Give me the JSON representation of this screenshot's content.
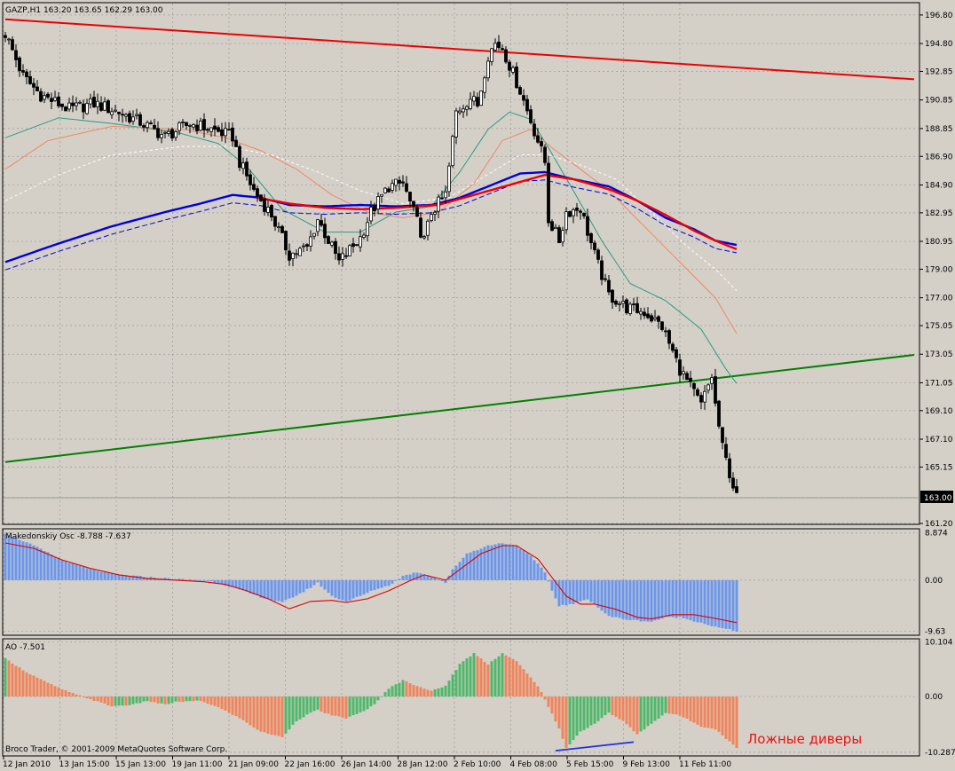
{
  "symbol_header": "GAZP,H1  163.20 163.65 162.29 163.00",
  "osc_header": "Makedonskiy Osc -8.788 -7.637",
  "ao_header": "AO -7.501",
  "copyright": "Broco Trader, © 2001-2009 MetaQuotes Software Corp.",
  "annotation": "Ложные диверы",
  "colors": {
    "background": "#d4d0c8",
    "grid": "#9a9a9a",
    "candle": "#000000",
    "ma_fast": "#2a9a80",
    "ma_mid": "#f08860",
    "ma_slow": "#ffffff",
    "ma_blue": "#0000dd",
    "ma_red": "#ee0000",
    "trend_red": "#ee0000",
    "trend_green": "#008000",
    "osc_hist": "#6a96ee",
    "osc_signal": "#dd0000",
    "ao_up": "#4fb86a",
    "ao_down": "#f0845a",
    "divergence": "#2030dd",
    "annotation": "#ee1111"
  },
  "chart_data": [
    {
      "type": "candlestick",
      "title": "GAZP,H1",
      "ylim": [
        161.2,
        197.6
      ],
      "y_ticks": [
        "196.80",
        "194.80",
        "192.85",
        "190.85",
        "188.85",
        "186.90",
        "184.90",
        "182.95",
        "180.95",
        "179.00",
        "177.00",
        "175.05",
        "173.05",
        "171.05",
        "169.10",
        "167.10",
        "165.15",
        "163.00",
        "161.20"
      ],
      "last_price": "163.00",
      "x_ticks": [
        "12 Jan 2010",
        "13 Jan 15:00",
        "15 Jan 13:00",
        "19 Jan 11:00",
        "21 Jan 09:00",
        "22 Jan 16:00",
        "26 Jan 14:00",
        "28 Jan 12:00",
        "2 Feb 10:00",
        "4 Feb 08:00",
        "5 Feb 15:00",
        "9 Feb 13:00",
        "11 Feb 11:00"
      ],
      "bars": 206,
      "close_path": [
        [
          0,
          195.5
        ],
        [
          5,
          192.5
        ],
        [
          10,
          191.2
        ],
        [
          18,
          190.2
        ],
        [
          25,
          190.6
        ],
        [
          32,
          190.0
        ],
        [
          38,
          189.3
        ],
        [
          45,
          188.3
        ],
        [
          52,
          189.2
        ],
        [
          58,
          188.8
        ],
        [
          64,
          188.3
        ],
        [
          66,
          186.5
        ],
        [
          70,
          184.5
        ],
        [
          75,
          182.8
        ],
        [
          80,
          180.0
        ],
        [
          85,
          180.5
        ],
        [
          88,
          182.5
        ],
        [
          94,
          179.5
        ],
        [
          100,
          181.2
        ],
        [
          103,
          183.0
        ],
        [
          108,
          184.8
        ],
        [
          112,
          185.0
        ],
        [
          115,
          183.0
        ],
        [
          118,
          181.0
        ],
        [
          120,
          183.0
        ],
        [
          124,
          184.2
        ],
        [
          127,
          190.0
        ],
        [
          131,
          191.0
        ],
        [
          133,
          190.5
        ],
        [
          136,
          194.0
        ],
        [
          138,
          194.8
        ],
        [
          140,
          194.5
        ],
        [
          145,
          191.5
        ],
        [
          150,
          188.0
        ],
        [
          152,
          186.5
        ],
        [
          153,
          182.5
        ],
        [
          156,
          181.0
        ],
        [
          158,
          183.0
        ],
        [
          162,
          183.3
        ],
        [
          166,
          180.0
        ],
        [
          170,
          177.2
        ],
        [
          175,
          176.3
        ],
        [
          180,
          176.0
        ],
        [
          185,
          175.0
        ],
        [
          190,
          172.0
        ],
        [
          196,
          169.5
        ],
        [
          199,
          171.5
        ],
        [
          200,
          169.5
        ],
        [
          202,
          166.5
        ],
        [
          206,
          163.0
        ]
      ],
      "series": [
        {
          "name": "ma_fast",
          "values": [
            [
              0,
              188.2
            ],
            [
              15,
              189.6
            ],
            [
              30,
              189.2
            ],
            [
              48,
              188.6
            ],
            [
              60,
              187.8
            ],
            [
              68,
              186.2
            ],
            [
              78,
              183.2
            ],
            [
              90,
              181.6
            ],
            [
              100,
              181.6
            ],
            [
              110,
              183.0
            ],
            [
              120,
              183.4
            ],
            [
              128,
              185.8
            ],
            [
              136,
              188.8
            ],
            [
              142,
              190.0
            ],
            [
              148,
              189.5
            ],
            [
              153,
              187.5
            ],
            [
              160,
              184.5
            ],
            [
              168,
              181.0
            ],
            [
              176,
              178.0
            ],
            [
              186,
              176.8
            ],
            [
              196,
              174.8
            ],
            [
              203,
              172.0
            ],
            [
              206,
              171.0
            ]
          ]
        },
        {
          "name": "ma_mid",
          "values": [
            [
              0,
              186.0
            ],
            [
              12,
              188.0
            ],
            [
              30,
              189.0
            ],
            [
              50,
              188.8
            ],
            [
              62,
              188.2
            ],
            [
              72,
              187.3
            ],
            [
              82,
              186.0
            ],
            [
              92,
              184.2
            ],
            [
              102,
              183.0
            ],
            [
              112,
              182.6
            ],
            [
              122,
              183.0
            ],
            [
              132,
              185.0
            ],
            [
              140,
              188.0
            ],
            [
              148,
              188.8
            ],
            [
              154,
              187.5
            ],
            [
              162,
              186.0
            ],
            [
              170,
              184.5
            ],
            [
              180,
              182.0
            ],
            [
              190,
              179.5
            ],
            [
              200,
              177.0
            ],
            [
              206,
              174.5
            ]
          ]
        },
        {
          "name": "ma_slow",
          "values": [
            [
              0,
              183.8
            ],
            [
              15,
              185.6
            ],
            [
              30,
              187.0
            ],
            [
              50,
              187.6
            ],
            [
              62,
              187.6
            ],
            [
              75,
              187.0
            ],
            [
              88,
              185.8
            ],
            [
              100,
              184.5
            ],
            [
              112,
              183.6
            ],
            [
              125,
              184.0
            ],
            [
              135,
              185.5
            ],
            [
              145,
              187.0
            ],
            [
              153,
              187.0
            ],
            [
              162,
              186.3
            ],
            [
              172,
              185.3
            ],
            [
              182,
              183.0
            ],
            [
              192,
              180.6
            ],
            [
              200,
              179.0
            ],
            [
              206,
              177.5
            ]
          ]
        },
        {
          "name": "ma_blue",
          "values": [
            [
              0,
              179.5
            ],
            [
              15,
              180.8
            ],
            [
              30,
              182.0
            ],
            [
              45,
              183.0
            ],
            [
              55,
              183.6
            ],
            [
              64,
              184.2
            ],
            [
              72,
              184.0
            ],
            [
              80,
              183.5
            ],
            [
              90,
              183.4
            ],
            [
              100,
              183.5
            ],
            [
              110,
              183.4
            ],
            [
              120,
              183.5
            ],
            [
              128,
              184.0
            ],
            [
              136,
              184.8
            ],
            [
              145,
              185.7
            ],
            [
              152,
              185.8
            ],
            [
              160,
              185.3
            ],
            [
              170,
              184.8
            ],
            [
              178,
              183.8
            ],
            [
              186,
              182.6
            ],
            [
              194,
              181.8
            ],
            [
              200,
              181.0
            ],
            [
              206,
              180.7
            ]
          ]
        },
        {
          "name": "ma_red",
          "values": [
            [
              71,
              184.0
            ],
            [
              80,
              183.6
            ],
            [
              90,
              183.3
            ],
            [
              100,
              183.2
            ],
            [
              110,
              183.3
            ],
            [
              122,
              183.5
            ],
            [
              152,
              185.6
            ],
            [
              160,
              185.3
            ],
            [
              170,
              184.6
            ],
            [
              178,
              183.8
            ],
            [
              186,
              182.8
            ],
            [
              194,
              181.7
            ],
            [
              200,
              181.0
            ],
            [
              206,
              180.4
            ]
          ]
        }
      ],
      "trend_lines": [
        {
          "name": "resistance",
          "from": [
            0,
            196.5
          ],
          "to": [
            256,
            192.3
          ]
        },
        {
          "name": "support",
          "from": [
            0,
            165.5
          ],
          "to": [
            256,
            173.0
          ]
        }
      ]
    },
    {
      "type": "bar",
      "title": "Makedonskiy Osc",
      "ylim": [
        -10.2,
        9.5
      ],
      "y_ticks": [
        "8.874",
        "0.00",
        "-9.63"
      ],
      "hist_path": [
        [
          0,
          8.8
        ],
        [
          8,
          6.5
        ],
        [
          16,
          3.8
        ],
        [
          24,
          2.0
        ],
        [
          32,
          1.0
        ],
        [
          40,
          0.6
        ],
        [
          48,
          0.2
        ],
        [
          56,
          0.0
        ],
        [
          60,
          -0.5
        ],
        [
          66,
          -1.8
        ],
        [
          72,
          -3.2
        ],
        [
          78,
          -4.2
        ],
        [
          84,
          -2.2
        ],
        [
          88,
          -0.5
        ],
        [
          92,
          -3.0
        ],
        [
          96,
          -4.0
        ],
        [
          100,
          -3.0
        ],
        [
          104,
          -1.8
        ],
        [
          108,
          -1.0
        ],
        [
          112,
          0.8
        ],
        [
          116,
          1.5
        ],
        [
          120,
          0.8
        ],
        [
          124,
          -0.5
        ],
        [
          126,
          2.0
        ],
        [
          130,
          5.0
        ],
        [
          136,
          6.5
        ],
        [
          140,
          7.0
        ],
        [
          144,
          6.5
        ],
        [
          148,
          4.5
        ],
        [
          152,
          1.5
        ],
        [
          154,
          -2.0
        ],
        [
          156,
          -4.8
        ],
        [
          160,
          -4.5
        ],
        [
          164,
          -3.5
        ],
        [
          170,
          -6.8
        ],
        [
          176,
          -7.5
        ],
        [
          182,
          -7.8
        ],
        [
          186,
          -7.0
        ],
        [
          190,
          -7.0
        ],
        [
          196,
          -8.0
        ],
        [
          200,
          -8.8
        ],
        [
          206,
          -9.6
        ]
      ],
      "signal_path": [
        [
          0,
          7.0
        ],
        [
          8,
          6.0
        ],
        [
          16,
          3.8
        ],
        [
          24,
          2.2
        ],
        [
          32,
          1.0
        ],
        [
          40,
          0.3
        ],
        [
          48,
          0.0
        ],
        [
          56,
          -0.3
        ],
        [
          62,
          -0.8
        ],
        [
          68,
          -2.0
        ],
        [
          74,
          -3.5
        ],
        [
          80,
          -5.4
        ],
        [
          86,
          -4.0
        ],
        [
          92,
          -3.8
        ],
        [
          96,
          -4.2
        ],
        [
          102,
          -3.5
        ],
        [
          108,
          -2.0
        ],
        [
          114,
          -0.1
        ],
        [
          118,
          1.0
        ],
        [
          124,
          0.0
        ],
        [
          128,
          2.0
        ],
        [
          134,
          5.0
        ],
        [
          140,
          6.5
        ],
        [
          144,
          6.5
        ],
        [
          150,
          4.0
        ],
        [
          154,
          0.5
        ],
        [
          158,
          -3.0
        ],
        [
          162,
          -4.5
        ],
        [
          166,
          -4.5
        ],
        [
          172,
          -5.5
        ],
        [
          178,
          -7.0
        ],
        [
          182,
          -7.3
        ],
        [
          188,
          -6.5
        ],
        [
          194,
          -6.5
        ],
        [
          200,
          -7.2
        ],
        [
          206,
          -8.0
        ]
      ]
    },
    {
      "type": "bar",
      "title": "AO",
      "ylim": [
        -10.8,
        10.5
      ],
      "y_ticks": [
        "10.104",
        "0.00",
        "-10.287"
      ],
      "ao_path": [
        [
          0,
          7.0
        ],
        [
          6,
          4.5
        ],
        [
          12,
          2.5
        ],
        [
          18,
          0.8
        ],
        [
          24,
          -0.5
        ],
        [
          30,
          -1.8
        ],
        [
          36,
          -1.5
        ],
        [
          40,
          -0.8
        ],
        [
          45,
          -1.5
        ],
        [
          48,
          -1.0
        ],
        [
          55,
          -0.8
        ],
        [
          60,
          -2.0
        ],
        [
          66,
          -4.0
        ],
        [
          72,
          -6.5
        ],
        [
          78,
          -7.5
        ],
        [
          82,
          -4.5
        ],
        [
          86,
          -3.0
        ],
        [
          88,
          -2.5
        ],
        [
          92,
          -3.5
        ],
        [
          96,
          -4.0
        ],
        [
          100,
          -3.0
        ],
        [
          104,
          -1.5
        ],
        [
          108,
          1.5
        ],
        [
          112,
          3.0
        ],
        [
          116,
          2.0
        ],
        [
          120,
          1.0
        ],
        [
          124,
          2.0
        ],
        [
          128,
          6.0
        ],
        [
          132,
          8.0
        ],
        [
          136,
          6.0
        ],
        [
          140,
          8.0
        ],
        [
          144,
          6.5
        ],
        [
          150,
          2.0
        ],
        [
          152,
          -0.5
        ],
        [
          156,
          -6.0
        ],
        [
          158,
          -9.5
        ],
        [
          162,
          -6.5
        ],
        [
          166,
          -5.0
        ],
        [
          170,
          -3.0
        ],
        [
          174,
          -4.5
        ],
        [
          178,
          -7.0
        ],
        [
          182,
          -5.0
        ],
        [
          186,
          -3.0
        ],
        [
          190,
          -3.5
        ],
        [
          196,
          -5.5
        ],
        [
          200,
          -6.0
        ],
        [
          206,
          -9.5
        ]
      ],
      "annotation_line": {
        "from": [
          155,
          -10.0
        ],
        "to": [
          177,
          -8.4
        ]
      }
    }
  ]
}
